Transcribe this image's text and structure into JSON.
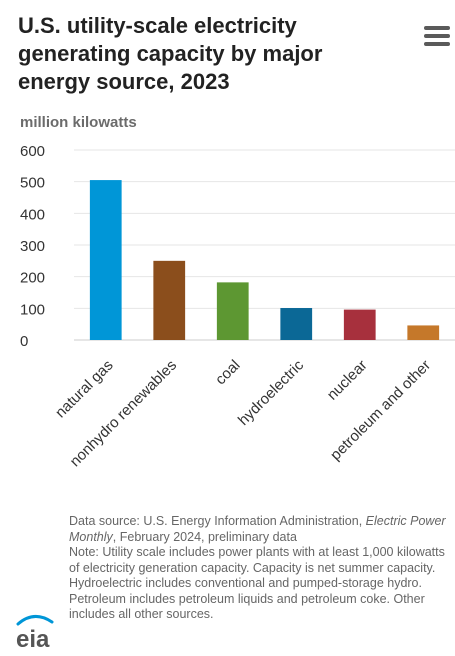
{
  "header": {
    "title": "U.S. utility-scale electricity generating capacity by major energy source, 2023",
    "menu_icon": "hamburger-menu-icon"
  },
  "chart_data": {
    "type": "bar",
    "title": "U.S. utility-scale electricity generating capacity by major energy source, 2023",
    "ylabel": "million kilowatts",
    "xlabel": "",
    "categories": [
      "natural gas",
      "nonhydro renewables",
      "coal",
      "hydroelectric",
      "nuclear",
      "petroleum and other"
    ],
    "values": [
      505,
      250,
      182,
      101,
      96,
      46
    ],
    "colors": [
      "#0096d7",
      "#8b4e1c",
      "#5d9732",
      "#0b6896",
      "#a7303d",
      "#c5782a"
    ],
    "ylim": [
      0,
      600
    ],
    "yticks": [
      "0",
      "100",
      "200",
      "300",
      "400",
      "500",
      "600"
    ],
    "grid": true,
    "legend": "none"
  },
  "footer": {
    "source_prefix": "Data source: U.S. Energy Information Administration, ",
    "source_italic": "Electric Power Monthly",
    "source_suffix": ", February 2024, preliminary data",
    "note": "Note: Utility scale includes power plants with at least 1,000 kilowatts of electricity generation capacity. Capacity is net summer capacity. Hydroelectric includes conventional and pumped-storage hydro. Petroleum includes petroleum liquids and petroleum coke. Other includes all other sources.",
    "logo_text": "eia"
  },
  "colors": {
    "title": "#222222",
    "axis_text": "#333333",
    "gridline": "#e6e6e6",
    "note_text": "#666666",
    "logo_blue": "#0096d7"
  }
}
